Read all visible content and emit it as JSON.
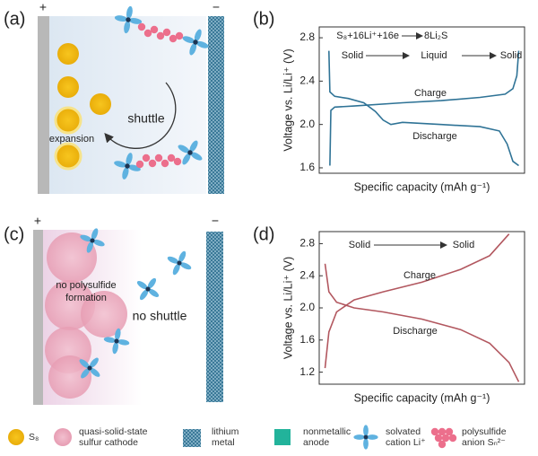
{
  "panel_a": {
    "label": "(a)",
    "plus": "+",
    "minus": "−",
    "shuttle": "shuttle",
    "expansion": "expansion"
  },
  "panel_c": {
    "label": "(c)",
    "plus": "+",
    "minus": "−",
    "no_polysulfide": [
      "no polysulfide",
      "formation"
    ],
    "no_shuttle": "no shuttle"
  },
  "chart_data": [
    {
      "type": "line",
      "panel_label": "(b)",
      "ylabel": "Voltage vs. Li/Li⁺ (V)",
      "xlabel": "Specific capacity (mAh g⁻¹)",
      "reaction": [
        "S₈+16Li⁺+16e",
        "8Li₂S"
      ],
      "phases": [
        "Solid",
        "Liquid",
        "Solid"
      ],
      "annotations": [
        "Charge",
        "Discharge"
      ],
      "xlim": [
        -0.03,
        1.03
      ],
      "ylim": [
        1.55,
        2.9
      ],
      "yticks": [
        1.6,
        {
          "value": 2,
          "label": "2.0"
        },
        2.4,
        2.8
      ],
      "series": [
        {
          "name": "Discharge",
          "color": "#2f7396",
          "x": [
            0.02,
            0.025,
            0.05,
            0.12,
            0.2,
            0.26,
            0.3,
            0.34,
            0.4,
            0.6,
            0.8,
            0.9,
            0.94,
            0.97,
            1.0
          ],
          "values": [
            2.68,
            2.3,
            2.26,
            2.24,
            2.2,
            2.12,
            2.04,
            2.0,
            2.02,
            2.0,
            1.98,
            1.94,
            1.82,
            1.66,
            1.62
          ]
        },
        {
          "name": "Charge",
          "color": "#2f7396",
          "x": [
            0.025,
            0.03,
            0.05,
            0.15,
            0.4,
            0.6,
            0.8,
            0.93,
            0.97,
            0.99,
            1.0
          ],
          "values": [
            1.62,
            2.13,
            2.16,
            2.17,
            2.2,
            2.22,
            2.25,
            2.28,
            2.33,
            2.45,
            2.68
          ]
        }
      ]
    },
    {
      "type": "line",
      "panel_label": "(d)",
      "ylabel": "Voltage vs. Li/Li⁺ (V)",
      "xlabel": "Specific capacity (mAh g⁻¹)",
      "phases": [
        "Solid",
        "Solid"
      ],
      "annotations": [
        "Charge",
        "Discharge"
      ],
      "xlim": [
        -0.03,
        1.03
      ],
      "ylim": [
        1.05,
        2.95
      ],
      "yticks": [
        1.2,
        1.6,
        {
          "value": 2,
          "label": "2.0"
        },
        2.4,
        2.8
      ],
      "series": [
        {
          "name": "Discharge",
          "color": "#b2575f",
          "x": [
            0.0,
            0.02,
            0.06,
            0.15,
            0.3,
            0.5,
            0.7,
            0.85,
            0.95,
            1.0
          ],
          "values": [
            2.55,
            2.2,
            2.07,
            2.0,
            1.95,
            1.86,
            1.73,
            1.56,
            1.32,
            1.08
          ]
        },
        {
          "name": "Charge",
          "color": "#b2575f",
          "x": [
            0.0,
            0.02,
            0.06,
            0.15,
            0.3,
            0.5,
            0.7,
            0.85,
            0.95
          ],
          "values": [
            1.25,
            1.7,
            1.95,
            2.1,
            2.2,
            2.32,
            2.48,
            2.65,
            2.92
          ]
        }
      ]
    }
  ],
  "legend": [
    {
      "label": [
        "S₈"
      ]
    },
    {
      "label": [
        "quasi-solid-state",
        "sulfur cathode"
      ]
    },
    {
      "label": [
        "lithium",
        "metal"
      ]
    },
    {
      "label": [
        "nonmetallic",
        "anode"
      ]
    },
    {
      "label": [
        "solvated",
        "cation Li⁺"
      ]
    },
    {
      "label": [
        "polysulfide",
        "anion Sₙ²⁻"
      ]
    }
  ]
}
